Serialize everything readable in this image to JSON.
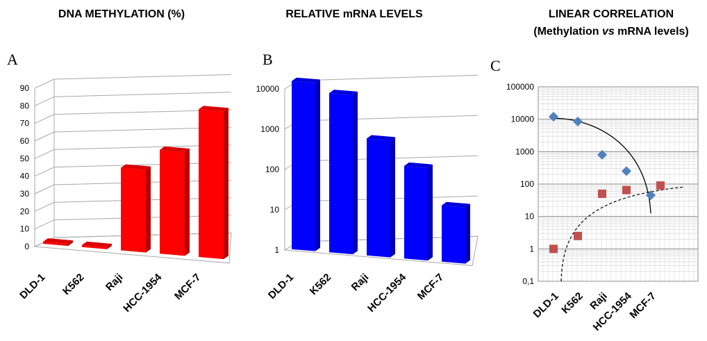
{
  "chart_data": [
    {
      "panel": "A",
      "type": "bar",
      "title": "DNA METHYLATION  (%)",
      "categories": [
        "DLD-1",
        "K562",
        "Raji",
        "HCC-1954",
        "MCF-7"
      ],
      "values": [
        1,
        1,
        47,
        59,
        84
      ],
      "ylim": [
        0,
        90
      ],
      "yticks": [
        0,
        10,
        20,
        30,
        40,
        50,
        60,
        70,
        80,
        90
      ],
      "ytick_labels": [
        "0",
        "10",
        "20",
        "30",
        "40",
        "50",
        "60",
        "70",
        "80",
        "90"
      ],
      "color": "#ff0000",
      "grid": true
    },
    {
      "panel": "B",
      "type": "bar",
      "title": "RELATIVE  mRNA LEVELS",
      "categories": [
        "DLD-1",
        "K562",
        "Raji",
        "HCC-1954",
        "MCF-7"
      ],
      "values": [
        15000,
        9000,
        800,
        200,
        25
      ],
      "yscale": "log",
      "ylim": [
        1,
        10000
      ],
      "yticks": [
        1,
        10,
        100,
        1000,
        10000
      ],
      "ytick_labels": [
        "1",
        "10",
        "100",
        "1000",
        "10000"
      ],
      "color": "#0000ff",
      "grid": true
    },
    {
      "panel": "C",
      "type": "scatter",
      "title_lines": [
        "LINEAR CORRELATION",
        "(Methylation vs mRNA levels)"
      ],
      "categories": [
        "DLD-1",
        "K562",
        "Raji",
        "HCC-1954",
        "MCF-7"
      ],
      "yscale": "log",
      "ylim": [
        0.1,
        100000
      ],
      "yticks": [
        0.1,
        1,
        10,
        100,
        1000,
        10000,
        100000
      ],
      "ytick_labels": [
        "0,1",
        "1",
        "10",
        "100",
        "1000",
        "10000",
        "100000"
      ],
      "grid": true,
      "series": [
        {
          "marker": "diamond",
          "color": "#4f81bd",
          "trend": "solid",
          "values": [
            12000,
            8500,
            800,
            250,
            45
          ]
        },
        {
          "marker": "square",
          "color": "#c0504d",
          "trend": "dashed",
          "values": [
            1,
            2.5,
            50,
            65,
            90
          ]
        }
      ]
    }
  ],
  "title_c_parts": [
    "(Methylation ",
    "vs",
    " mRNA levels)"
  ]
}
